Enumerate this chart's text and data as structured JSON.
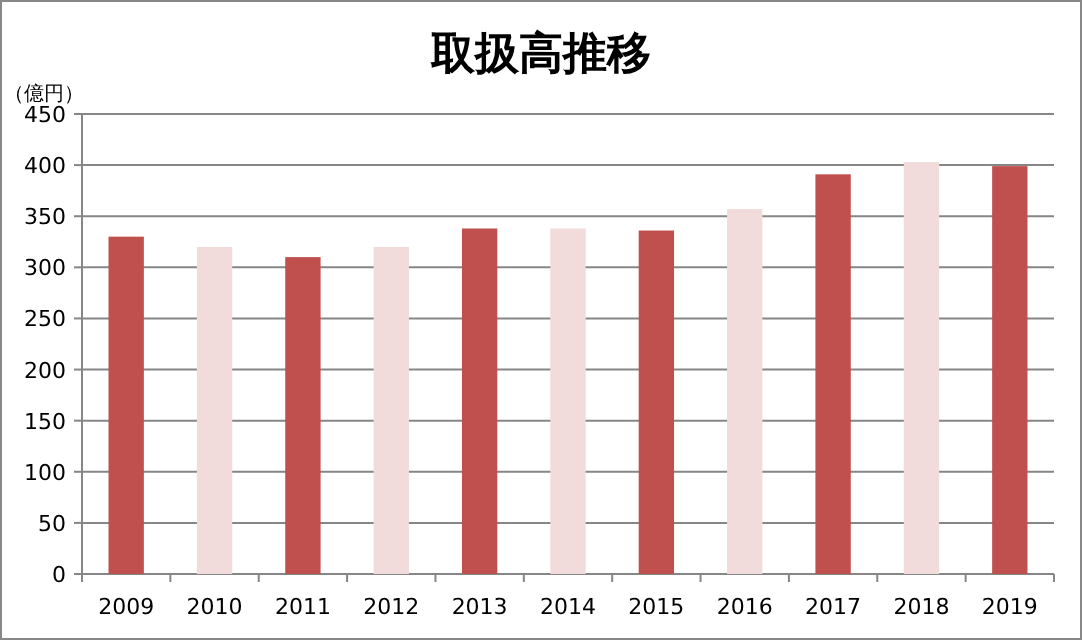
{
  "chart_data": {
    "type": "bar",
    "title": "取扱高推移",
    "ylabel": "（億円）",
    "categories": [
      "2009",
      "2010",
      "2011",
      "2012",
      "2013",
      "2014",
      "2015",
      "2016",
      "2017",
      "2018",
      "2019"
    ],
    "values": [
      330,
      320,
      310,
      320,
      338,
      338,
      336,
      357,
      391,
      403,
      399
    ],
    "colors": [
      "#c0504d",
      "#f2dcdb",
      "#c0504d",
      "#f2dcdb",
      "#c0504d",
      "#f2dcdb",
      "#c0504d",
      "#f2dcdb",
      "#c0504d",
      "#f2dcdb",
      "#c0504d"
    ],
    "ylim": [
      0,
      450
    ],
    "yticks": [
      0,
      50,
      100,
      150,
      200,
      250,
      300,
      350,
      400,
      450
    ],
    "grid": "y"
  }
}
